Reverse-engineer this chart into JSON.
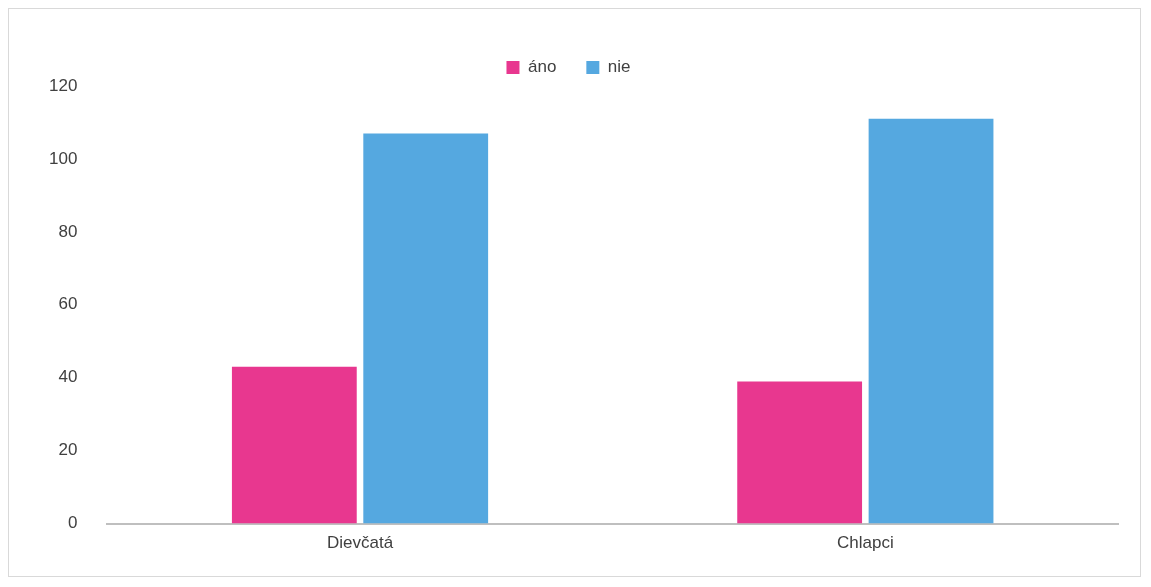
{
  "chart_data": {
    "type": "bar",
    "categories": [
      "Dievčatá",
      "Chlapci"
    ],
    "series": [
      {
        "name": "áno",
        "color": "#e8378f",
        "values": [
          43,
          39
        ]
      },
      {
        "name": "nie",
        "color": "#55a8e0",
        "values": [
          107,
          111
        ]
      }
    ],
    "ylim": [
      0,
      120
    ],
    "yticks": [
      0,
      20,
      40,
      60,
      80,
      100,
      120
    ],
    "grid": false,
    "legend": "top"
  }
}
